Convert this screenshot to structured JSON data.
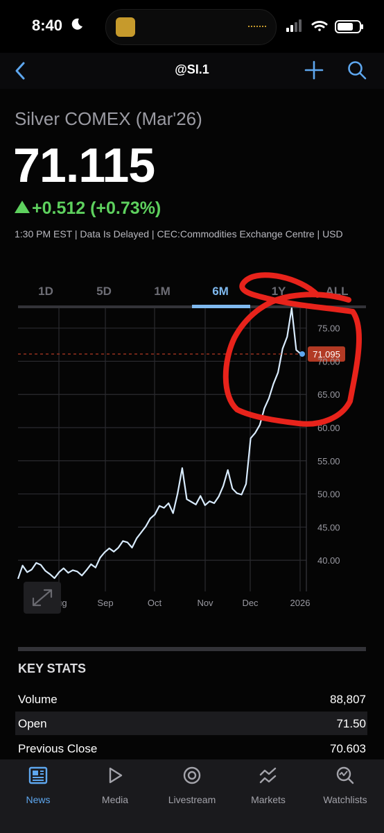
{
  "status_bar": {
    "time": "8:40"
  },
  "nav": {
    "title": "@SI.1"
  },
  "quote": {
    "name": "Silver COMEX (Mar'26)",
    "price": "71.115",
    "change": "+0.512 (+0.73%)",
    "meta": "1:30 PM EST | Data Is Delayed | CEC:Commodities Exchange Centre | USD"
  },
  "tabs": [
    {
      "label": "1D",
      "active": false
    },
    {
      "label": "5D",
      "active": false
    },
    {
      "label": "1M",
      "active": false
    },
    {
      "label": "6M",
      "active": true
    },
    {
      "label": "1Y",
      "active": false
    },
    {
      "label": "ALL",
      "active": false
    }
  ],
  "chart_data": {
    "type": "line",
    "x_labels": [
      "Aug",
      "Sep",
      "Oct",
      "Nov",
      "Dec",
      "2026"
    ],
    "y_ticks": [
      "75.00",
      "70.00",
      "65.00",
      "60.00",
      "55.00",
      "50.00",
      "45.00",
      "40.00"
    ],
    "ylim": [
      35.3,
      78.0
    ],
    "grid": true,
    "last_value_label": "71.095",
    "last_value": 71.095,
    "series": [
      {
        "values": [
          37.2,
          39.2,
          38.2,
          38.6,
          39.6,
          39.3,
          38.4,
          37.9,
          37.3,
          38.2,
          38.8,
          38.1,
          38.5,
          38.3,
          37.7,
          38.5,
          39.4,
          38.9,
          40.4,
          41.2,
          41.8,
          41.3,
          41.9,
          42.9,
          42.7,
          41.9,
          43.3,
          44.2,
          45.1,
          46.3,
          46.9,
          48.2,
          47.9,
          48.6,
          47.1,
          50.1,
          53.9,
          49.2,
          48.8,
          48.4,
          49.7,
          48.3,
          48.9,
          48.6,
          49.6,
          51.2,
          53.6,
          50.8,
          50.1,
          49.9,
          51.5,
          58.4,
          59.2,
          60.4,
          62.9,
          64.4,
          66.6,
          68.3,
          71.9,
          73.7,
          78.0,
          71.7,
          71.1
        ]
      }
    ]
  },
  "key_stats": {
    "title": "KEY STATS",
    "rows": [
      {
        "label": "Volume",
        "value": "88,807"
      },
      {
        "label": "Open",
        "value": "71.50"
      },
      {
        "label": "Previous Close",
        "value": "70.603"
      }
    ]
  },
  "tabbar": [
    {
      "label": "News",
      "icon": "news-icon",
      "active": true
    },
    {
      "label": "Media",
      "icon": "play-icon",
      "active": false
    },
    {
      "label": "Livestream",
      "icon": "livestream-icon",
      "active": false
    },
    {
      "label": "Markets",
      "icon": "markets-icon",
      "active": false
    },
    {
      "label": "Watchlists",
      "icon": "watchlist-icon",
      "active": false
    }
  ],
  "colors": {
    "accent": "#7fb9ef",
    "up": "#5ed15e",
    "price_label_bg": "#b23a24",
    "annotation": "#e8231b"
  }
}
